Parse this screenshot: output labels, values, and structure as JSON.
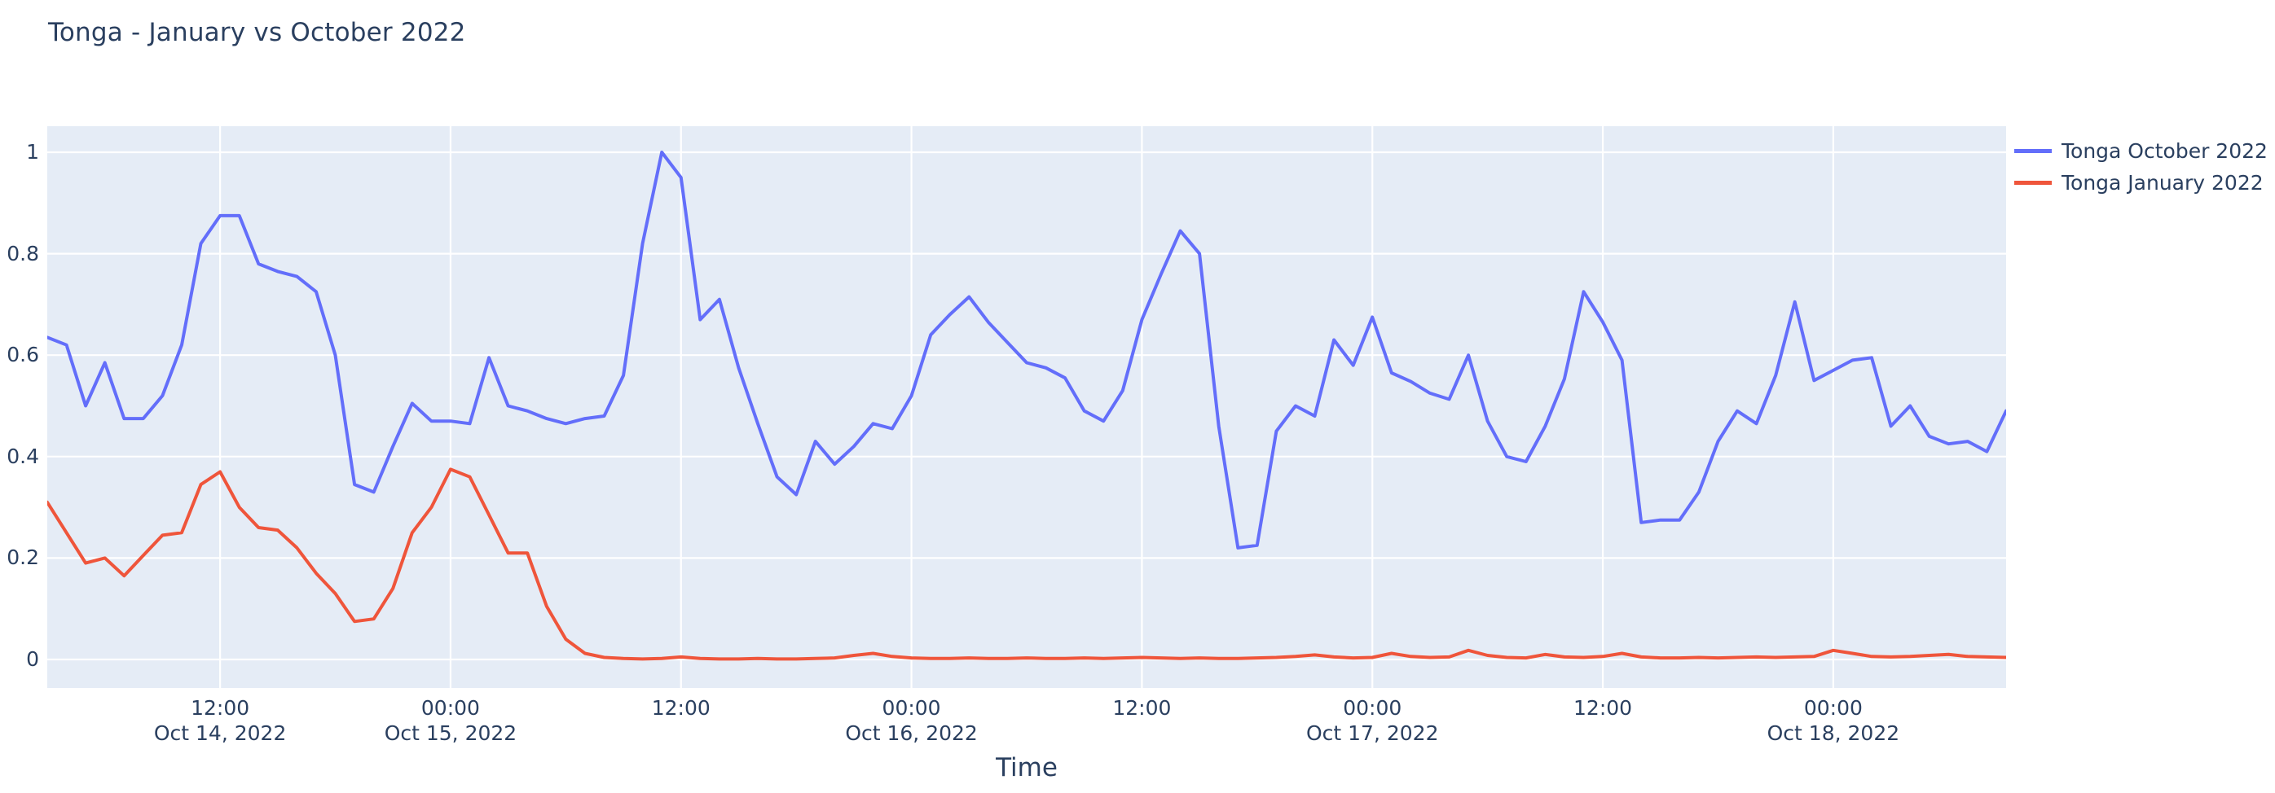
{
  "header": {
    "title": "Tonga - January vs October 2022"
  },
  "colors": {
    "october_line": "#636efa",
    "january_line": "#ef553b",
    "plot_background": "#e5ecf6",
    "gridline": "#ffffff",
    "text": "#2a3f5f",
    "page_background": "#ffffff"
  },
  "legend": {
    "position": "top-right-outside",
    "items": [
      {
        "label": "Tonga October 2022",
        "color": "#636efa"
      },
      {
        "label": "Tonga January 2022",
        "color": "#ef553b"
      }
    ]
  },
  "chart_data": {
    "type": "line",
    "title": "Tonga - January vs October 2022",
    "xlabel": "Time",
    "ylabel": "",
    "grid": true,
    "ylim": [
      -0.056,
      1.051
    ],
    "x_start": "2022-10-14 03:00",
    "x_end": "2022-10-18 09:00",
    "x_step_hours": 1,
    "yticks": [
      {
        "label": "0",
        "value": 0
      },
      {
        "label": "0.2",
        "value": 0.2
      },
      {
        "label": "0.4",
        "value": 0.4
      },
      {
        "label": "0.6",
        "value": 0.6
      },
      {
        "label": "0.8",
        "value": 0.8
      },
      {
        "label": "1",
        "value": 1
      }
    ],
    "xticks": [
      {
        "label": "12:00",
        "sublabel": "Oct 14, 2022",
        "hours_from_start": 9
      },
      {
        "label": "00:00",
        "sublabel": "Oct 15, 2022",
        "hours_from_start": 21
      },
      {
        "label": "12:00",
        "sublabel": "",
        "hours_from_start": 33
      },
      {
        "label": "00:00",
        "sublabel": "Oct 16, 2022",
        "hours_from_start": 45
      },
      {
        "label": "12:00",
        "sublabel": "",
        "hours_from_start": 57
      },
      {
        "label": "00:00",
        "sublabel": "Oct 17, 2022",
        "hours_from_start": 69
      },
      {
        "label": "12:00",
        "sublabel": "",
        "hours_from_start": 81
      },
      {
        "label": "00:00",
        "sublabel": "Oct 18, 2022",
        "hours_from_start": 93
      }
    ],
    "x": [
      "2022-10-14 03:00",
      "2022-10-14 04:00",
      "2022-10-14 05:00",
      "2022-10-14 06:00",
      "2022-10-14 07:00",
      "2022-10-14 08:00",
      "2022-10-14 09:00",
      "2022-10-14 10:00",
      "2022-10-14 11:00",
      "2022-10-14 12:00",
      "2022-10-14 13:00",
      "2022-10-14 14:00",
      "2022-10-14 15:00",
      "2022-10-14 16:00",
      "2022-10-14 17:00",
      "2022-10-14 18:00",
      "2022-10-14 19:00",
      "2022-10-14 20:00",
      "2022-10-14 21:00",
      "2022-10-14 22:00",
      "2022-10-14 23:00",
      "2022-10-15 00:00",
      "2022-10-15 01:00",
      "2022-10-15 02:00",
      "2022-10-15 03:00",
      "2022-10-15 04:00",
      "2022-10-15 05:00",
      "2022-10-15 06:00",
      "2022-10-15 07:00",
      "2022-10-15 08:00",
      "2022-10-15 09:00",
      "2022-10-15 10:00",
      "2022-10-15 11:00",
      "2022-10-15 12:00",
      "2022-10-15 13:00",
      "2022-10-15 14:00",
      "2022-10-15 15:00",
      "2022-10-15 16:00",
      "2022-10-15 17:00",
      "2022-10-15 18:00",
      "2022-10-15 19:00",
      "2022-10-15 20:00",
      "2022-10-15 21:00",
      "2022-10-15 22:00",
      "2022-10-15 23:00",
      "2022-10-16 00:00",
      "2022-10-16 01:00",
      "2022-10-16 02:00",
      "2022-10-16 03:00",
      "2022-10-16 04:00",
      "2022-10-16 05:00",
      "2022-10-16 06:00",
      "2022-10-16 07:00",
      "2022-10-16 08:00",
      "2022-10-16 09:00",
      "2022-10-16 10:00",
      "2022-10-16 11:00",
      "2022-10-16 12:00",
      "2022-10-16 13:00",
      "2022-10-16 14:00",
      "2022-10-16 15:00",
      "2022-10-16 16:00",
      "2022-10-16 17:00",
      "2022-10-16 18:00",
      "2022-10-16 19:00",
      "2022-10-16 20:00",
      "2022-10-16 21:00",
      "2022-10-16 22:00",
      "2022-10-16 23:00",
      "2022-10-17 00:00",
      "2022-10-17 01:00",
      "2022-10-17 02:00",
      "2022-10-17 03:00",
      "2022-10-17 04:00",
      "2022-10-17 05:00",
      "2022-10-17 06:00",
      "2022-10-17 07:00",
      "2022-10-17 08:00",
      "2022-10-17 09:00",
      "2022-10-17 10:00",
      "2022-10-17 11:00",
      "2022-10-17 12:00",
      "2022-10-17 13:00",
      "2022-10-17 14:00",
      "2022-10-17 15:00",
      "2022-10-17 16:00",
      "2022-10-17 17:00",
      "2022-10-17 18:00",
      "2022-10-17 19:00",
      "2022-10-17 20:00",
      "2022-10-17 21:00",
      "2022-10-17 22:00",
      "2022-10-17 23:00",
      "2022-10-18 00:00",
      "2022-10-18 01:00",
      "2022-10-18 02:00",
      "2022-10-18 03:00",
      "2022-10-18 04:00",
      "2022-10-18 05:00",
      "2022-10-18 06:00",
      "2022-10-18 07:00",
      "2022-10-18 08:00",
      "2022-10-18 09:00"
    ],
    "series": [
      {
        "name": "Tonga October 2022",
        "color": "#636efa",
        "values": [
          0.635,
          0.62,
          0.5,
          0.585,
          0.475,
          0.475,
          0.52,
          0.62,
          0.82,
          0.875,
          0.875,
          0.78,
          0.765,
          0.755,
          0.725,
          0.6,
          0.345,
          0.33,
          0.42,
          0.505,
          0.47,
          0.47,
          0.465,
          0.595,
          0.5,
          0.49,
          0.475,
          0.465,
          0.475,
          0.48,
          0.56,
          0.82,
          1.0,
          0.95,
          0.67,
          0.71,
          0.575,
          0.465,
          0.36,
          0.325,
          0.43,
          0.385,
          0.42,
          0.465,
          0.455,
          0.52,
          0.64,
          0.68,
          0.715,
          0.665,
          0.625,
          0.585,
          0.575,
          0.555,
          0.49,
          0.47,
          0.53,
          0.67,
          0.76,
          0.845,
          0.8,
          0.46,
          0.22,
          0.225,
          0.45,
          0.5,
          0.48,
          0.63,
          0.58,
          0.675,
          0.565,
          0.548,
          0.525,
          0.513,
          0.6,
          0.47,
          0.4,
          0.39,
          0.46,
          0.553,
          0.725,
          0.665,
          0.59,
          0.27,
          0.275,
          0.275,
          0.33,
          0.43,
          0.49,
          0.465,
          0.56,
          0.705,
          0.55,
          0.57,
          0.59,
          0.595,
          0.46,
          0.5,
          0.44,
          0.425,
          0.43,
          0.41,
          0.49
        ]
      },
      {
        "name": "Tonga January 2022",
        "color": "#ef553b",
        "values": [
          0.31,
          0.25,
          0.19,
          0.2,
          0.165,
          0.205,
          0.245,
          0.25,
          0.345,
          0.37,
          0.3,
          0.26,
          0.255,
          0.22,
          0.17,
          0.13,
          0.075,
          0.08,
          0.14,
          0.25,
          0.3,
          0.375,
          0.36,
          0.285,
          0.21,
          0.21,
          0.105,
          0.04,
          0.012,
          0.004,
          0.002,
          0.001,
          0.002,
          0.005,
          0.002,
          0.001,
          0.001,
          0.002,
          0.001,
          0.001,
          0.002,
          0.003,
          0.008,
          0.012,
          0.006,
          0.003,
          0.002,
          0.002,
          0.003,
          0.002,
          0.002,
          0.003,
          0.002,
          0.002,
          0.003,
          0.002,
          0.003,
          0.004,
          0.003,
          0.002,
          0.003,
          0.002,
          0.002,
          0.003,
          0.004,
          0.006,
          0.009,
          0.005,
          0.003,
          0.004,
          0.012,
          0.006,
          0.004,
          0.005,
          0.018,
          0.008,
          0.004,
          0.003,
          0.01,
          0.005,
          0.004,
          0.006,
          0.012,
          0.005,
          0.003,
          0.003,
          0.004,
          0.003,
          0.004,
          0.005,
          0.004,
          0.005,
          0.006,
          0.018,
          0.012,
          0.006,
          0.005,
          0.006,
          0.008,
          0.01,
          0.006,
          0.005,
          0.004
        ]
      }
    ]
  }
}
